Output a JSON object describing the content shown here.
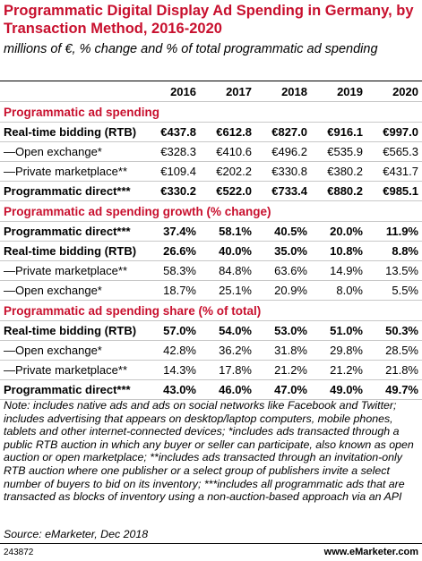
{
  "header": {
    "title": "Programmatic Digital Display Ad Spending in Germany, by Transaction Method, 2016-2020",
    "subtitle": "millions of €, % change and % of total programmatic ad spending"
  },
  "table": {
    "columns": [
      "2016",
      "2017",
      "2018",
      "2019",
      "2020"
    ],
    "sections": [
      {
        "title": "Programmatic ad spending",
        "rows": [
          {
            "label": "Real-time bidding (RTB)",
            "bold": true,
            "values": [
              "€437.8",
              "€612.8",
              "€827.0",
              "€916.1",
              "€997.0"
            ]
          },
          {
            "label": "—Open exchange*",
            "bold": false,
            "values": [
              "€328.3",
              "€410.6",
              "€496.2",
              "€535.9",
              "€565.3"
            ]
          },
          {
            "label": "—Private marketplace**",
            "bold": false,
            "values": [
              "€109.4",
              "€202.2",
              "€330.8",
              "€380.2",
              "€431.7"
            ]
          },
          {
            "label": "Programmatic direct***",
            "bold": true,
            "values": [
              "€330.2",
              "€522.0",
              "€733.4",
              "€880.2",
              "€985.1"
            ]
          }
        ]
      },
      {
        "title": "Programmatic ad spending growth (% change)",
        "rows": [
          {
            "label": "Programmatic direct***",
            "bold": true,
            "values": [
              "37.4%",
              "58.1%",
              "40.5%",
              "20.0%",
              "11.9%"
            ]
          },
          {
            "label": "Real-time bidding (RTB)",
            "bold": true,
            "values": [
              "26.6%",
              "40.0%",
              "35.0%",
              "10.8%",
              "8.8%"
            ]
          },
          {
            "label": "—Private marketplace**",
            "bold": false,
            "values": [
              "58.3%",
              "84.8%",
              "63.6%",
              "14.9%",
              "13.5%"
            ]
          },
          {
            "label": "—Open exchange*",
            "bold": false,
            "values": [
              "18.7%",
              "25.1%",
              "20.9%",
              "8.0%",
              "5.5%"
            ]
          }
        ]
      },
      {
        "title": "Programmatic ad spending share (% of total)",
        "rows": [
          {
            "label": "Real-time bidding (RTB)",
            "bold": true,
            "values": [
              "57.0%",
              "54.0%",
              "53.0%",
              "51.0%",
              "50.3%"
            ]
          },
          {
            "label": "—Open exchange*",
            "bold": false,
            "values": [
              "42.8%",
              "36.2%",
              "31.8%",
              "29.8%",
              "28.5%"
            ]
          },
          {
            "label": "—Private marketplace**",
            "bold": false,
            "values": [
              "14.3%",
              "17.8%",
              "21.2%",
              "21.2%",
              "21.8%"
            ]
          },
          {
            "label": "Programmatic direct***",
            "bold": true,
            "values": [
              "43.0%",
              "46.0%",
              "47.0%",
              "49.0%",
              "49.7%"
            ]
          }
        ]
      }
    ]
  },
  "footer": {
    "note": "Note: includes native ads and ads on social networks like Facebook and Twitter; includes advertising that appears on desktop/laptop computers, mobile phones, tablets and other internet-connected devices; *includes ads transacted through a public RTB auction in which any buyer or seller can participate, also known as open auction or open marketplace; **includes ads transacted through an invitation-only RTB auction where one publisher or a select group of publishers invite a select number of buyers to bid on its inventory; ***includes all programmatic ads that are transacted as blocks of inventory using a non-auction-based approach via an API",
    "source": "Source: eMarketer, Dec 2018",
    "id": "243872",
    "site": "www.eMarketer.com"
  }
}
